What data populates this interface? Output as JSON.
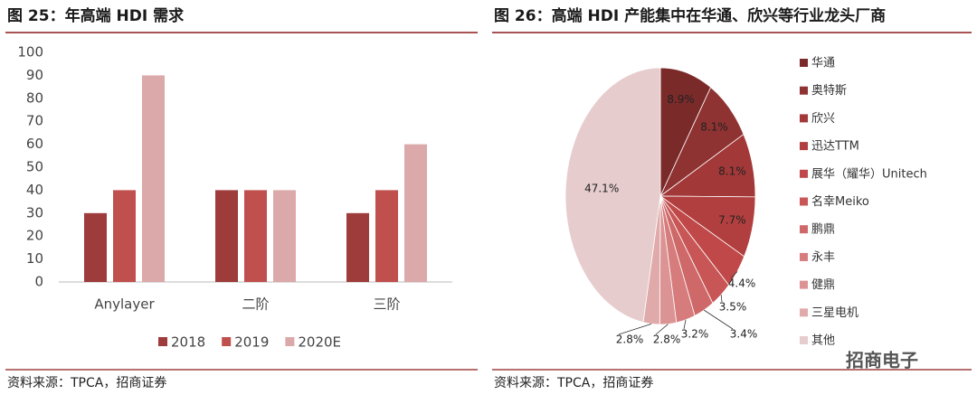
{
  "chart_data": [
    {
      "type": "bar",
      "title": "图 25：年高端 HDI 需求",
      "categories": [
        "Anylayer",
        "二阶",
        "三阶"
      ],
      "series": [
        {
          "name": "2018",
          "color": "#9e3b3b",
          "values": [
            30,
            40,
            30
          ]
        },
        {
          "name": "2019",
          "color": "#c0504d",
          "values": [
            40,
            40,
            40
          ]
        },
        {
          "name": "2020E",
          "color": "#dba9a9",
          "values": [
            90,
            40,
            60
          ]
        }
      ],
      "ylim": [
        0,
        100
      ],
      "yticks": [
        0,
        10,
        20,
        30,
        40,
        50,
        60,
        70,
        80,
        90,
        100
      ],
      "grid": false,
      "legend": "bottom",
      "source": "资料来源：TPCA，招商证券"
    },
    {
      "type": "pie",
      "title": "图 26：高端 HDI 产能集中在华通、欣兴等行业龙头厂商",
      "categories": [
        "华通",
        "奥特斯",
        "欣兴",
        "迅达TTM",
        "展华（耀华）Unitech",
        "名幸Meiko",
        "鹏鼎",
        "永丰",
        "健鼎",
        "三星电机",
        "其他"
      ],
      "values": [
        8.9,
        8.1,
        8.1,
        7.7,
        4.4,
        3.5,
        3.4,
        3.2,
        2.8,
        2.8,
        47.1
      ],
      "value_labels": [
        "8.9%",
        "8.1%",
        "8.1%",
        "7.7%",
        "4.4%",
        "3.5%",
        "3.4%",
        "3.2%",
        "2.8%",
        "2.8%",
        "47.1%"
      ],
      "colors": [
        "#7b2a2a",
        "#8f3232",
        "#a23838",
        "#b23f3f",
        "#c04848",
        "#c85656",
        "#cf6868",
        "#d67c7c",
        "#dc9393",
        "#e1aaaa",
        "#e6cccd"
      ],
      "legend": "right",
      "source": "资料来源：TPCA，招商证券"
    }
  ],
  "watermark": "招商电子"
}
